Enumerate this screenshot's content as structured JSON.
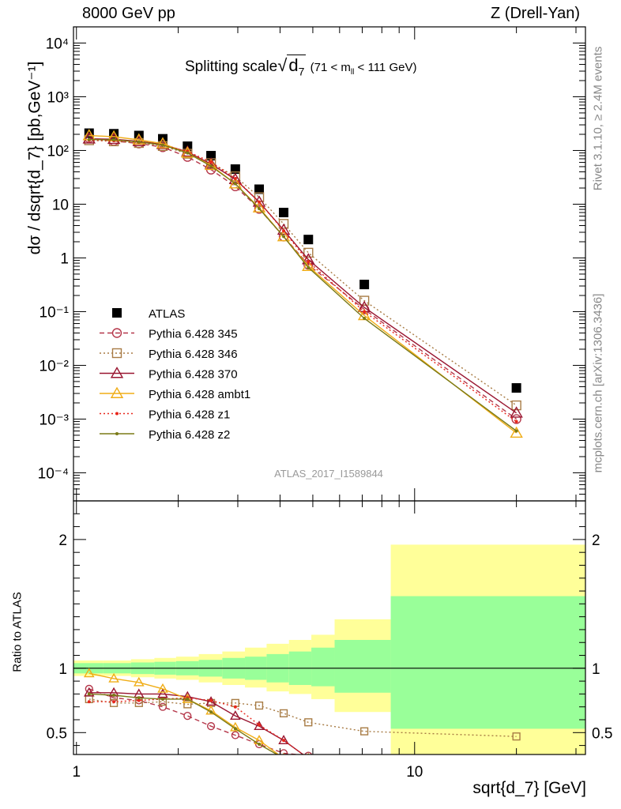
{
  "header": {
    "left": "8000 GeV pp",
    "right": "Z (Drell-Yan)"
  },
  "side": {
    "rivet": "Rivet 3.1.10, ≥ 2.4M events",
    "mcplots": "mcplots.cern.ch [arXiv:1306.3436]"
  },
  "analysis_label": "ATLAS_2017_I1589844",
  "title": {
    "prefix": "Splitting scale",
    "root_symbol": "d",
    "root_sub": "7",
    "range_a": "(71 < m",
    "range_sub": "ll",
    "range_b": " < 111 GeV)"
  },
  "axes": {
    "main_ylabel": "dσ / dsqrt{d_7} [pb,GeV⁻¹]",
    "ratio_ylabel": "Ratio to ATLAS",
    "xlabel": "sqrt{d_7} [GeV]"
  },
  "chart_data": {
    "type": "line",
    "x_scale": "log",
    "xlim": [
      0.98,
      32
    ],
    "x_ticks": [
      "1",
      "10"
    ],
    "main": {
      "y_scale": "log",
      "ylim": [
        3e-05,
        20000
      ],
      "y_ticks": [
        "10⁻⁴",
        "10⁻³",
        "10⁻²",
        "10⁻¹",
        "1",
        "10",
        "10²",
        "10³",
        "10⁴"
      ]
    },
    "ratio": {
      "ylim": [
        0.33,
        2.3
      ],
      "y_ticks": [
        "0.5",
        "1",
        "2"
      ],
      "band_edges": [
        0.98,
        1.2,
        1.45,
        1.7,
        1.97,
        2.3,
        2.7,
        3.15,
        3.65,
        4.25,
        4.95,
        5.8,
        8.5,
        32
      ],
      "green_low": [
        0.96,
        0.96,
        0.955,
        0.95,
        0.945,
        0.935,
        0.92,
        0.91,
        0.89,
        0.87,
        0.86,
        0.81,
        0.53
      ],
      "green_high": [
        1.04,
        1.04,
        1.045,
        1.05,
        1.055,
        1.065,
        1.08,
        1.09,
        1.11,
        1.13,
        1.16,
        1.22,
        1.56
      ],
      "yellow_low": [
        0.94,
        0.94,
        0.93,
        0.92,
        0.91,
        0.89,
        0.87,
        0.85,
        0.82,
        0.8,
        0.76,
        0.66,
        0.2
      ],
      "yellow_high": [
        1.06,
        1.06,
        1.07,
        1.08,
        1.09,
        1.11,
        1.13,
        1.16,
        1.19,
        1.22,
        1.26,
        1.38,
        1.96
      ]
    },
    "x": [
      1.09,
      1.29,
      1.53,
      1.8,
      2.13,
      2.5,
      2.95,
      3.47,
      4.1,
      4.85,
      7.1,
      20
    ],
    "legend_position": "middle-left",
    "series": [
      {
        "name": "ATLAS",
        "color": "#000000",
        "marker": "square-filled",
        "line": "none",
        "values": [
          210,
          205,
          190,
          165,
          120,
          80,
          45,
          19,
          7,
          2.2,
          0.32,
          0.0038
        ],
        "ratio": [
          1,
          1,
          1,
          1,
          1,
          1,
          1,
          1,
          1,
          1,
          1,
          1
        ]
      },
      {
        "name": "Pythia 6.428 345",
        "color": "#b5374a",
        "marker": "circle-open",
        "line": "dashed",
        "values": [
          170,
          150,
          135,
          115,
          76,
          44,
          21.5,
          8.2,
          2.5,
          0.75,
          0.11,
          0.001
        ],
        "ratio": [
          0.84,
          0.77,
          0.75,
          0.7,
          0.63,
          0.55,
          0.48,
          0.41,
          0.34,
          0.32,
          0.3,
          0.28
        ]
      },
      {
        "name": "Pythia 6.428 346",
        "color": "#a87c45",
        "marker": "square-open",
        "line": "dotted",
        "values": [
          155,
          148,
          138,
          121,
          87,
          58,
          33,
          13.5,
          4.3,
          1.25,
          0.16,
          0.0018
        ],
        "ratio": [
          0.76,
          0.73,
          0.73,
          0.74,
          0.72,
          0.73,
          0.73,
          0.71,
          0.65,
          0.58,
          0.51,
          0.47
        ]
      },
      {
        "name": "Pythia 6.428 370",
        "color": "#991530",
        "marker": "triangle-open",
        "line": "solid",
        "values": [
          165,
          162,
          148,
          130,
          94,
          56,
          29,
          11,
          3.3,
          0.93,
          0.12,
          0.0013
        ],
        "ratio": [
          0.81,
          0.81,
          0.8,
          0.8,
          0.78,
          0.74,
          0.63,
          0.55,
          0.44,
          0.3,
          0.28,
          0.28
        ]
      },
      {
        "name": "Pythia 6.428 ambt1",
        "color": "#f0ad17",
        "marker": "triangle-open",
        "line": "solid",
        "values": [
          190,
          180,
          158,
          134,
          90,
          53,
          24,
          8.6,
          2.5,
          0.7,
          0.085,
          0.00055
        ],
        "ratio": [
          0.96,
          0.92,
          0.89,
          0.84,
          0.76,
          0.67,
          0.54,
          0.44,
          0.3,
          0.3,
          0.29,
          0.27
        ]
      },
      {
        "name": "Pythia 6.428 z1",
        "color": "#e8271c",
        "marker": "dot",
        "line": "dotted",
        "values": [
          155,
          152,
          142,
          126,
          96,
          61,
          30,
          11,
          3.2,
          0.85,
          0.1,
          0.0009
        ],
        "ratio": [
          0.74,
          0.74,
          0.75,
          0.76,
          0.77,
          0.75,
          0.7,
          0.56,
          0.44,
          0.3,
          0.28,
          0.27
        ]
      },
      {
        "name": "Pythia 6.428 z2",
        "color": "#7a7a17",
        "marker": "dot",
        "line": "solid",
        "values": [
          160,
          158,
          144,
          126,
          90,
          51,
          24,
          8.3,
          2.5,
          0.66,
          0.075,
          0.0006
        ],
        "ratio": [
          0.8,
          0.79,
          0.77,
          0.76,
          0.76,
          0.66,
          0.53,
          0.41,
          0.3,
          0.3,
          0.29,
          0.27
        ]
      }
    ]
  }
}
